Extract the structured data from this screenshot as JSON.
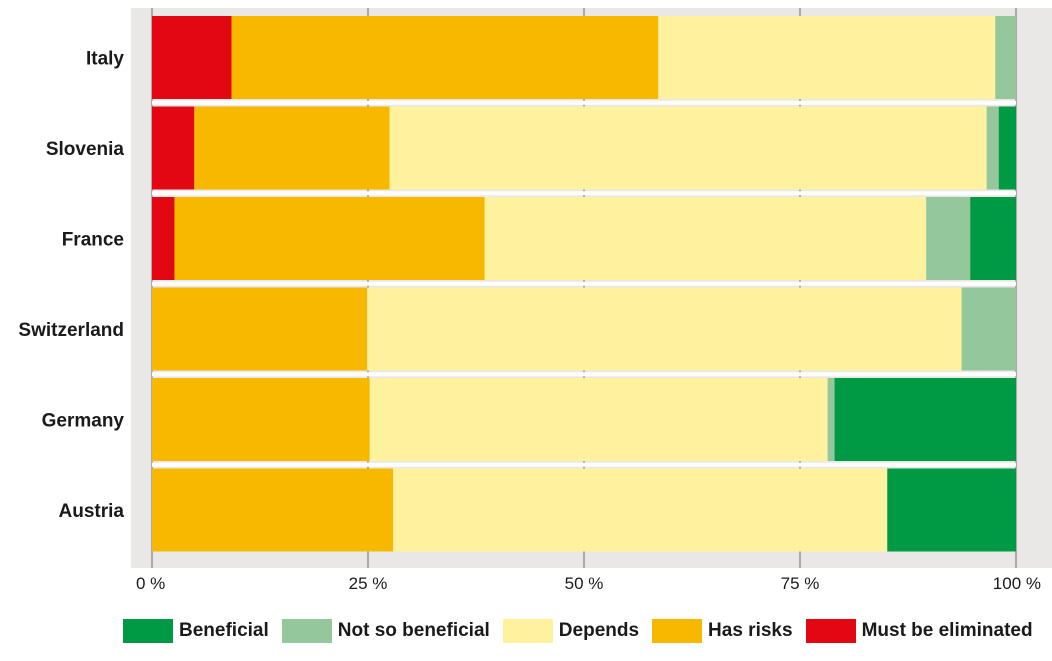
{
  "chart_data": {
    "type": "bar",
    "orientation": "horizontal",
    "stacked": true,
    "categories": [
      "Italy",
      "Slovenia",
      "France",
      "Switzerland",
      "Germany",
      "Austria"
    ],
    "series": [
      {
        "name": "Must be eliminated",
        "color": "#e30613",
        "values": [
          9.2,
          4.9,
          2.6,
          0,
          0,
          0
        ]
      },
      {
        "name": "Has risks",
        "color": "#f9b800",
        "values": [
          49.4,
          22.6,
          35.9,
          24.9,
          25.2,
          27.9
        ]
      },
      {
        "name": "Depends",
        "color": "#fff29e",
        "values": [
          39.0,
          69.1,
          51.1,
          68.8,
          53.0,
          57.2
        ]
      },
      {
        "name": "Not so beneficial",
        "color": "#94c89c",
        "values": [
          2.4,
          1.4,
          5.1,
          6.3,
          0.8,
          0
        ]
      },
      {
        "name": "Beneficial",
        "color": "#009a44",
        "values": [
          0,
          2.0,
          5.3,
          0,
          21.0,
          14.9
        ]
      }
    ],
    "xlim": [
      0,
      100
    ],
    "xticks": [
      "0 %",
      "25 %",
      "50 %",
      "75 %",
      "100 %"
    ],
    "grid": true,
    "legend_position": "bottom",
    "legend_order": [
      "Beneficial",
      "Not so beneficial",
      "Depends",
      "Has risks",
      "Must be eliminated"
    ],
    "colors": {
      "background": "#e9e8e6",
      "grid": "#a9a9a9",
      "separator": "#ffffff"
    }
  }
}
